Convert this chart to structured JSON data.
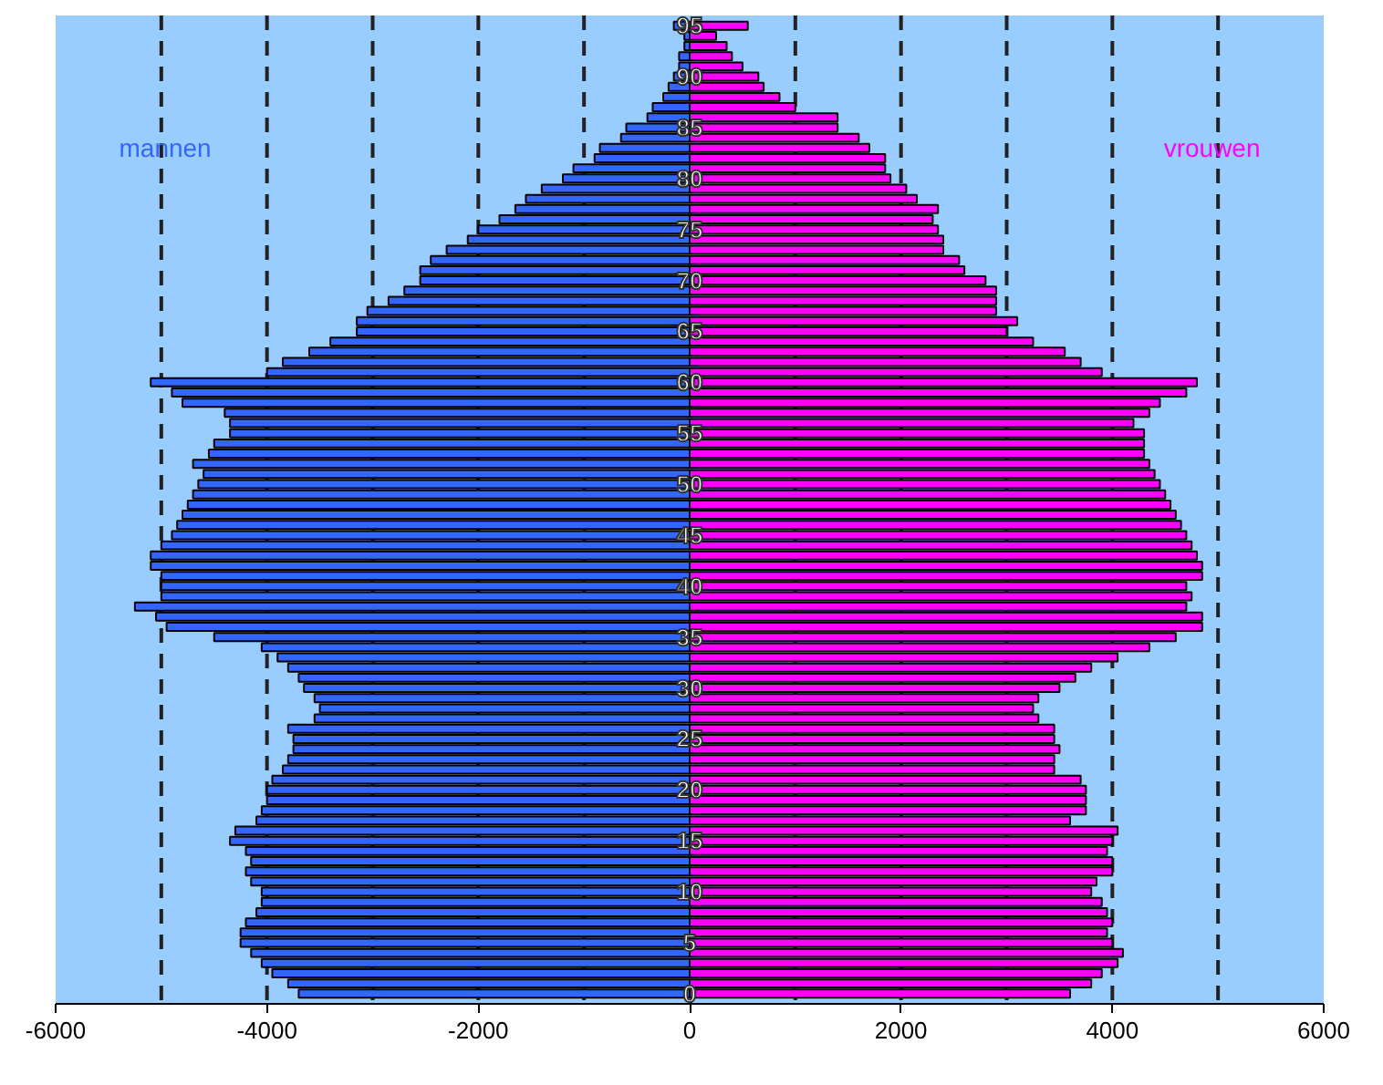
{
  "chart_data": {
    "type": "bar",
    "orientation": "horizontal",
    "stacked": true,
    "categories": [
      "95",
      null,
      null,
      null,
      null,
      "90",
      null,
      null,
      null,
      null,
      "85",
      null,
      null,
      null,
      null,
      "80",
      null,
      null,
      null,
      null,
      "75",
      null,
      null,
      null,
      null,
      "70",
      null,
      null,
      null,
      null,
      "65",
      null,
      null,
      null,
      null,
      "60",
      null,
      null,
      null,
      null,
      "55",
      null,
      null,
      null,
      null,
      "50",
      null,
      null,
      null,
      null,
      "45",
      null,
      null,
      null,
      null,
      "40",
      null,
      null,
      null,
      null,
      "35",
      null,
      null,
      null,
      null,
      "30",
      null,
      null,
      null,
      null,
      "25",
      null,
      null,
      null,
      null,
      "20",
      null,
      null,
      null,
      null,
      "15",
      null,
      null,
      null,
      null,
      "10",
      null,
      null,
      null,
      null,
      "5",
      null,
      null,
      null,
      null,
      "0"
    ],
    "series": [
      {
        "name": "mannen",
        "color": "#3366ff",
        "values": [
          -150,
          -50,
          -50,
          -100,
          -100,
          -150,
          -200,
          -250,
          -350,
          -400,
          -600,
          -650,
          -850,
          -900,
          -1100,
          -1200,
          -1400,
          -1550,
          -1650,
          -1800,
          -2000,
          -2100,
          -2300,
          -2450,
          -2550,
          -2550,
          -2700,
          -2850,
          -3050,
          -3150,
          -3150,
          -3400,
          -3600,
          -3850,
          -4000,
          -5100,
          -4900,
          -4800,
          -4400,
          -4350,
          -4350,
          -4500,
          -4550,
          -4700,
          -4600,
          -4650,
          -4700,
          -4750,
          -4800,
          -4850,
          -4900,
          -5000,
          -5100,
          -5100,
          -5000,
          -5000,
          -5000,
          -5250,
          -5050,
          -4950,
          -4500,
          -4050,
          -3900,
          -3800,
          -3700,
          -3650,
          -3550,
          -3500,
          -3550,
          -3800,
          -3750,
          -3750,
          -3800,
          -3850,
          -3950,
          -4000,
          -4000,
          -4050,
          -4100,
          -4300,
          -4350,
          -4200,
          -4150,
          -4200,
          -4150,
          -4050,
          -4050,
          -4100,
          -4200,
          -4250,
          -4250,
          -4150,
          -4050,
          -3950,
          -3800,
          -3700
        ]
      },
      {
        "name": "vrouwen",
        "color": "#ff00ff",
        "values": [
          550,
          250,
          350,
          400,
          500,
          650,
          700,
          850,
          1000,
          1400,
          1400,
          1600,
          1700,
          1850,
          1850,
          1900,
          2050,
          2150,
          2350,
          2300,
          2350,
          2400,
          2400,
          2550,
          2600,
          2800,
          2900,
          2900,
          2900,
          3100,
          3000,
          3250,
          3550,
          3700,
          3900,
          4800,
          4700,
          4450,
          4350,
          4200,
          4300,
          4300,
          4300,
          4350,
          4400,
          4450,
          4500,
          4550,
          4600,
          4650,
          4700,
          4750,
          4800,
          4850,
          4850,
          4700,
          4750,
          4700,
          4850,
          4850,
          4600,
          4350,
          4050,
          3800,
          3650,
          3500,
          3300,
          3250,
          3300,
          3450,
          3450,
          3500,
          3450,
          3450,
          3700,
          3750,
          3750,
          3750,
          3600,
          4050,
          4000,
          3950,
          4000,
          4000,
          3850,
          3800,
          3900,
          3950,
          4000,
          3950,
          4000,
          4100,
          4050,
          3900,
          3800,
          3600
        ]
      }
    ],
    "xlim": [
      -6000,
      6000
    ],
    "xticks": [
      -6000,
      -4000,
      -2000,
      0,
      2000,
      4000,
      6000
    ],
    "ref_lines": [
      {
        "axis": "x",
        "value": -5000,
        "color": "#222222",
        "line_style": "dashed"
      },
      {
        "axis": "x",
        "value": -4000,
        "color": "#222222",
        "line_style": "dashed"
      },
      {
        "axis": "x",
        "value": -3000,
        "color": "#222222",
        "line_style": "dashed"
      },
      {
        "axis": "x",
        "value": -2000,
        "color": "#222222",
        "line_style": "dashed"
      },
      {
        "axis": "x",
        "value": -1000,
        "color": "#222222",
        "line_style": "dashed"
      },
      {
        "axis": "x",
        "value": 1000,
        "color": "#222222",
        "line_style": "dashed"
      },
      {
        "axis": "x",
        "value": 2000,
        "color": "#222222",
        "line_style": "dashed"
      },
      {
        "axis": "x",
        "value": 3000,
        "color": "#222222",
        "line_style": "dashed"
      },
      {
        "axis": "x",
        "value": 4000,
        "color": "#222222",
        "line_style": "dashed"
      },
      {
        "axis": "x",
        "value": 5000,
        "color": "#222222",
        "line_style": "dashed"
      }
    ],
    "grid": false,
    "legend": false
  }
}
